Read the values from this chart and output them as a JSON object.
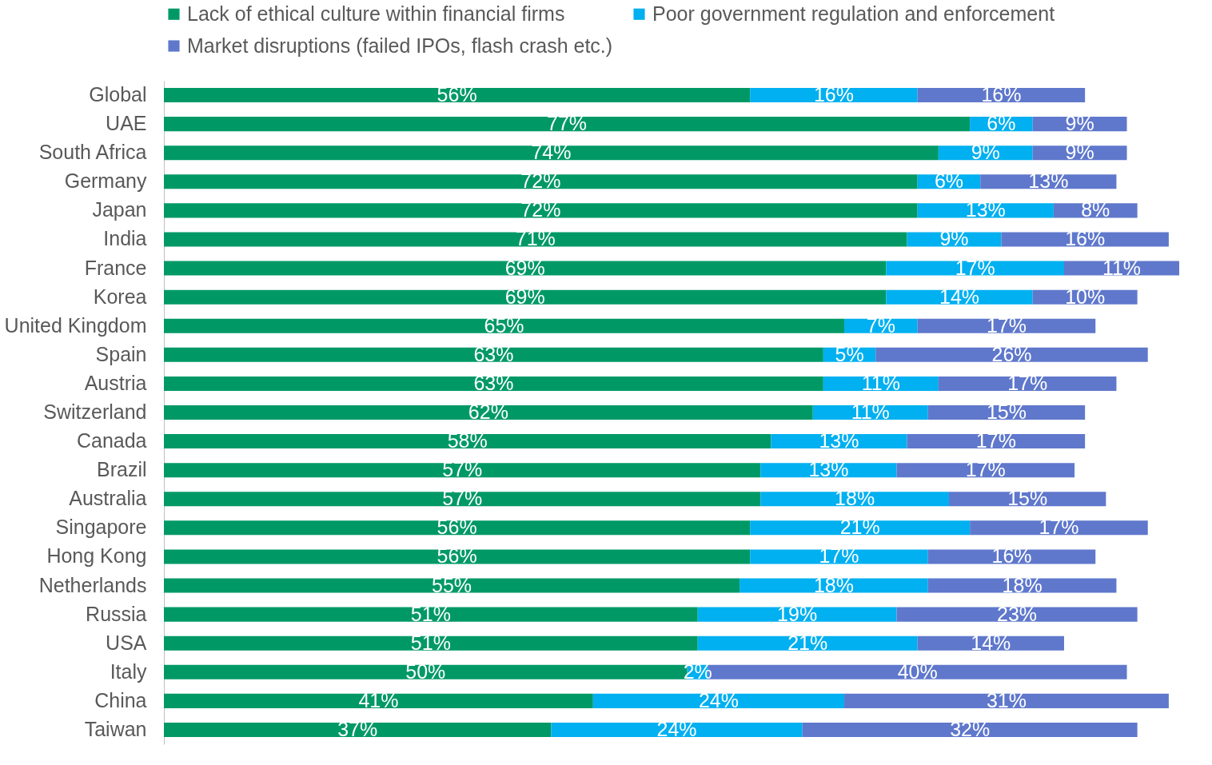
{
  "chart_data": {
    "type": "bar",
    "orientation": "horizontal",
    "stacked": true,
    "legend": "top",
    "categories": [
      "Global",
      "UAE",
      "South Africa",
      "Germany",
      "Japan",
      "India",
      "France",
      "Korea",
      "United Kingdom",
      "Spain",
      "Austria",
      "Switzerland",
      "Canada",
      "Brazil",
      "Australia",
      "Singapore",
      "Hong Kong",
      "Netherlands",
      "Russia",
      "USA",
      "Italy",
      "China",
      "Taiwan"
    ],
    "series": [
      {
        "name": "Lack of ethical culture within financial firms",
        "color": "#009966",
        "values": [
          56,
          77,
          74,
          72,
          72,
          71,
          69,
          69,
          65,
          63,
          63,
          62,
          58,
          57,
          57,
          56,
          56,
          55,
          51,
          51,
          50,
          41,
          37
        ],
        "value_labels": [
          "56%",
          "77%",
          "74%",
          "72%",
          "72%",
          "71%",
          "69%",
          "69%",
          "65%",
          "63%",
          "63%",
          "62%",
          "58%",
          "57%",
          "57%",
          "56%",
          "56%",
          "55%",
          "51%",
          "51%",
          "50%",
          "41%",
          "37%"
        ]
      },
      {
        "name": "Poor government regulation and enforcement",
        "color": "#00b0f0",
        "values": [
          16,
          6,
          9,
          6,
          13,
          9,
          17,
          14,
          7,
          5,
          11,
          11,
          13,
          13,
          18,
          21,
          17,
          18,
          19,
          21,
          2,
          24,
          24
        ],
        "value_labels": [
          "16%",
          "6%",
          "9%",
          "6%",
          "13%",
          "9%",
          "17%",
          "14%",
          "7%",
          "5%",
          "11%",
          "11%",
          "13%",
          "13%",
          "18%",
          "21%",
          "17%",
          "18%",
          "19%",
          "21%",
          "2%",
          "24%",
          "24%"
        ]
      },
      {
        "name": "Market disruptions (failed IPOs, flash crash etc.)",
        "color": "#5f78cc",
        "values": [
          16,
          9,
          9,
          13,
          8,
          16,
          11,
          10,
          17,
          26,
          17,
          15,
          17,
          17,
          15,
          17,
          16,
          18,
          23,
          14,
          40,
          31,
          32
        ],
        "value_labels": [
          "16%",
          "9%",
          "9%",
          "13%",
          "8%",
          "16%",
          "11%",
          "10%",
          "17%",
          "26%",
          "17%",
          "15%",
          "17%",
          "17%",
          "15%",
          "17%",
          "16%",
          "18%",
          "23%",
          "14%",
          "40%",
          "31%",
          "32%"
        ]
      }
    ]
  }
}
